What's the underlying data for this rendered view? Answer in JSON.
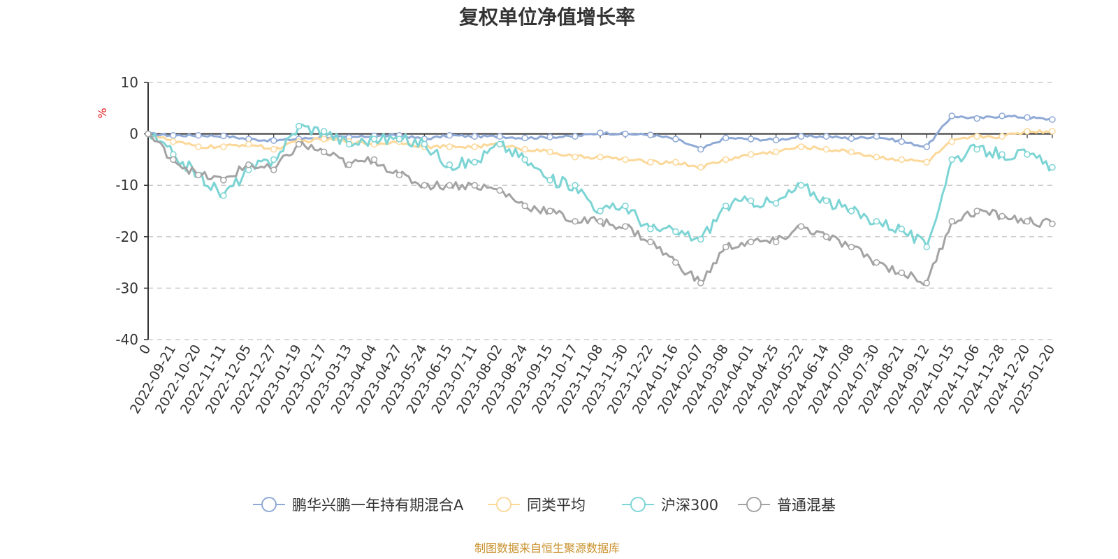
{
  "chart_data": {
    "type": "line",
    "title": "复权单位净值增长率",
    "ylabel": "%",
    "ylim": [
      -40,
      10
    ],
    "yticks": [
      10,
      0,
      -10,
      -20,
      -30,
      -40
    ],
    "grid": true,
    "legend_position": "bottom",
    "x_start_label": "0",
    "categories": [
      "2022-09-21",
      "2022-10-20",
      "2022-11-11",
      "2022-12-05",
      "2022-12-27",
      "2023-01-19",
      "2023-02-17",
      "2023-03-13",
      "2023-04-04",
      "2023-04-27",
      "2023-05-24",
      "2023-06-15",
      "2023-07-11",
      "2023-08-02",
      "2023-08-24",
      "2023-09-15",
      "2023-10-17",
      "2023-11-08",
      "2023-11-30",
      "2023-12-22",
      "2024-01-16",
      "2024-02-07",
      "2024-03-08",
      "2024-04-01",
      "2024-04-25",
      "2024-05-22",
      "2024-06-14",
      "2024-07-08",
      "2024-07-30",
      "2024-08-21",
      "2024-09-12",
      "2024-10-15",
      "2024-11-06",
      "2024-11-28",
      "2024-12-20",
      "2025-01-20"
    ],
    "series": [
      {
        "name": "鹏华兴鹏一年持有期混合A",
        "color": "#8fa9d6",
        "values": [
          -0.3,
          -0.3,
          -0.4,
          -1.0,
          -1.3,
          -1.0,
          -0.6,
          -0.7,
          -0.4,
          -0.3,
          -1.0,
          -0.3,
          -0.5,
          -0.5,
          -0.8,
          -0.6,
          -0.5,
          0.2,
          0.0,
          -0.2,
          -1.0,
          -3.0,
          -0.8,
          -1.0,
          -1.2,
          -0.5,
          -0.5,
          -0.9,
          -0.5,
          -1.5,
          -2.5,
          3.5,
          3.0,
          3.5,
          3.2,
          2.8
        ]
      },
      {
        "name": "同类平均",
        "color": "#fbd899",
        "values": [
          -1.5,
          -2.5,
          -2.5,
          -2.0,
          -3.0,
          -1.5,
          -1.0,
          -1.5,
          -2.0,
          -1.5,
          -2.5,
          -2.5,
          -2.5,
          -2.0,
          -3.0,
          -3.5,
          -4.5,
          -4.5,
          -5.0,
          -5.5,
          -5.5,
          -6.5,
          -5.0,
          -4.0,
          -3.5,
          -2.5,
          -3.0,
          -3.5,
          -4.5,
          -5.0,
          -5.5,
          -1.5,
          -0.5,
          -0.5,
          0.5,
          0.5
        ]
      },
      {
        "name": "沪深300",
        "color": "#7dd4d4",
        "values": [
          -4.0,
          -8.0,
          -12.0,
          -7.0,
          -5.0,
          1.5,
          0.5,
          -2.0,
          -1.0,
          -1.0,
          -2.0,
          -6.0,
          -5.5,
          -2.0,
          -5.0,
          -9.0,
          -10.0,
          -15.0,
          -14.0,
          -18.5,
          -19.0,
          -20.5,
          -14.0,
          -13.0,
          -13.5,
          -10.0,
          -13.0,
          -15.0,
          -17.0,
          -18.5,
          -22.0,
          -5.0,
          -3.0,
          -4.0,
          -4.0,
          -6.5
        ]
      },
      {
        "name": "普通混基",
        "color": "#a3a3a3",
        "values": [
          -5.0,
          -8.0,
          -9.0,
          -6.0,
          -7.0,
          -2.0,
          -3.5,
          -6.0,
          -5.0,
          -8.0,
          -10.0,
          -10.0,
          -10.0,
          -11.0,
          -14.0,
          -15.0,
          -17.0,
          -17.0,
          -18.0,
          -21.0,
          -25.0,
          -29.0,
          -22.0,
          -21.0,
          -21.0,
          -18.0,
          -20.0,
          -22.0,
          -25.0,
          -27.0,
          -29.0,
          -17.0,
          -15.0,
          -16.0,
          -17.0,
          -17.5
        ]
      }
    ]
  },
  "source_note": "制图数据来自恒生聚源数据库"
}
